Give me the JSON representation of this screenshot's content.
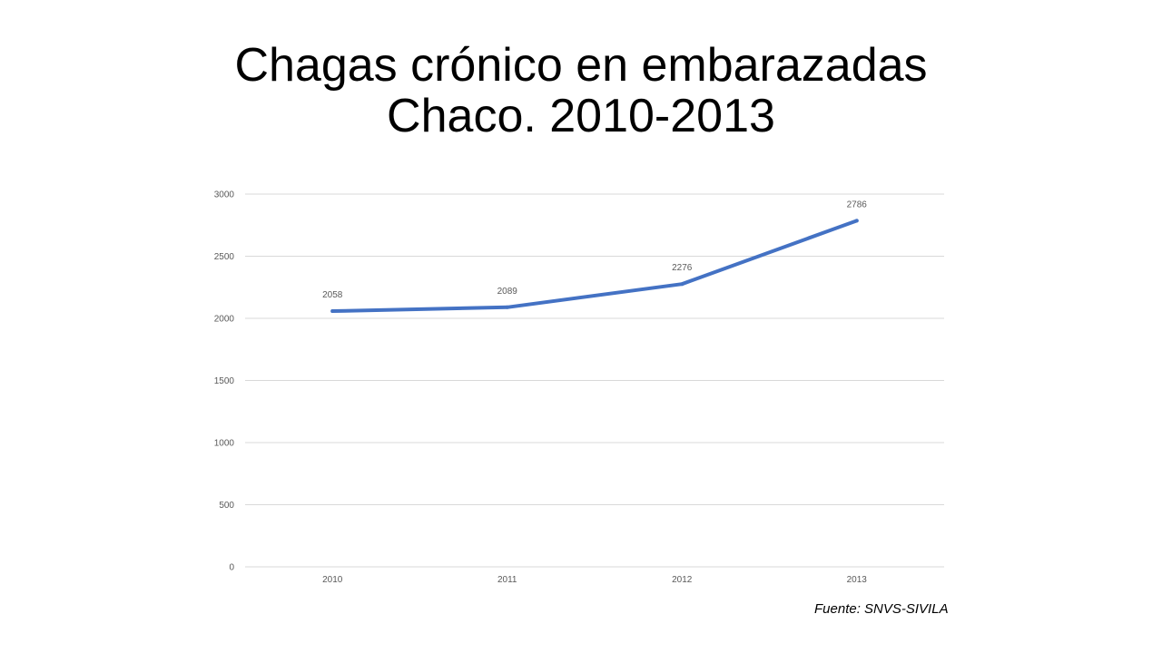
{
  "slide": {
    "title_line1": "Chagas crónico en embarazadas",
    "title_line2": "Chaco. 2010-2013",
    "source": "Fuente: SNVS-SIVILA"
  },
  "colors": {
    "series_line": "#4472C4",
    "gridline": "#D9D9D9",
    "label_text": "#595959"
  },
  "chart_data": {
    "type": "line",
    "title": "",
    "xlabel": "",
    "ylabel": "",
    "categories": [
      "2010",
      "2011",
      "2012",
      "2013"
    ],
    "series": [
      {
        "values": [
          2058,
          2089,
          2276,
          2786
        ]
      }
    ],
    "ylim": [
      0,
      3000
    ],
    "yticks": [
      0,
      500,
      1000,
      1500,
      2000,
      2500,
      3000
    ],
    "grid": true,
    "legend": "none",
    "data_labels": true
  }
}
